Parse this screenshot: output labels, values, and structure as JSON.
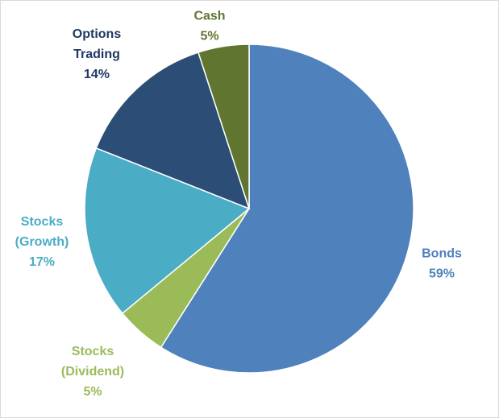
{
  "chart_data": {
    "type": "pie",
    "title": "",
    "start_angle_deg": 0,
    "direction": "clockwise",
    "slices": [
      {
        "name": "Bonds",
        "label_lines": [
          "Bonds"
        ],
        "value": 59,
        "percent_label": "59%",
        "color": "#4F81BD",
        "label_color": "#4F81BD"
      },
      {
        "name": "Stocks (Dividend)",
        "label_lines": [
          "Stocks",
          "(Dividend)"
        ],
        "value": 5,
        "percent_label": "5%",
        "color": "#9BBB59",
        "label_color": "#9BBB59"
      },
      {
        "name": "Stocks (Growth)",
        "label_lines": [
          "Stocks",
          "(Growth)"
        ],
        "value": 17,
        "percent_label": "17%",
        "color": "#4BACC6",
        "label_color": "#4BACC6"
      },
      {
        "name": "Options Trading",
        "label_lines": [
          "Options",
          "Trading"
        ],
        "value": 14,
        "percent_label": "14%",
        "color": "#2C4D75",
        "label_color": "#1F3864"
      },
      {
        "name": "Cash",
        "label_lines": [
          "Cash"
        ],
        "value": 5,
        "percent_label": "5%",
        "color": "#5F7530",
        "label_color": "#5F7530"
      }
    ],
    "legend": "none",
    "data_labels": "outside-end"
  }
}
